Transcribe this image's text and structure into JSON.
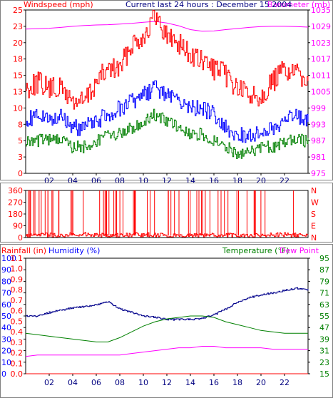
{
  "chart_data": [
    {
      "type": "line",
      "title": "Current last 24 hours : December 15 2004",
      "ylabel": "Windspeed (mph)",
      "y2label": "Barometer (mb)",
      "x_ticks": [
        "02",
        "04",
        "06",
        "08",
        "10",
        "12",
        "14",
        "16",
        "18",
        "20",
        "22"
      ],
      "y_ticks": [
        "0",
        "3",
        "5",
        "8",
        "10",
        "13",
        "15",
        "18",
        "20",
        "23",
        "25"
      ],
      "ylim": [
        0,
        25
      ],
      "y2_ticks": [
        "975",
        "981",
        "987",
        "993",
        "999",
        "1005",
        "1011",
        "1017",
        "1023",
        "1029",
        "1035"
      ],
      "y2lim": [
        975,
        1035
      ],
      "colors": {
        "gust": "#ff0000",
        "avg": "#0000ff",
        "min": "#008000",
        "baro": "#ff00ff"
      },
      "series": [
        {
          "key": "baro",
          "color": "#ff00ff",
          "axis": "y2",
          "x": [
            0,
            1,
            2,
            3,
            4,
            5,
            6,
            7,
            8,
            9,
            10,
            11,
            12,
            13,
            14,
            15,
            16,
            17,
            18,
            19,
            20,
            21,
            22,
            23,
            24
          ],
          "values": [
            1028.0,
            1028.1,
            1028.3,
            1028.6,
            1029.0,
            1029.3,
            1029.5,
            1029.6,
            1029.8,
            1030.1,
            1030.5,
            1030.8,
            1030.2,
            1029.2,
            1027.8,
            1027.2,
            1027.3,
            1027.8,
            1028.2,
            1028.6,
            1028.9,
            1029.0,
            1029.0,
            1028.9,
            1028.7
          ]
        },
        {
          "key": "gust",
          "color": "#ff0000",
          "axis": "y",
          "x": [
            0,
            1,
            2,
            3,
            4,
            5,
            6,
            7,
            8,
            9,
            10,
            11,
            12,
            13,
            14,
            15,
            16,
            17,
            18,
            19,
            20,
            21,
            22,
            23,
            24
          ],
          "values": [
            13,
            14,
            13,
            13,
            11,
            11,
            14,
            16,
            16,
            20,
            21,
            24,
            21,
            20,
            18,
            17,
            16,
            15,
            13,
            12,
            12,
            14,
            16,
            15,
            15
          ]
        },
        {
          "key": "avg",
          "color": "#0000ff",
          "axis": "y",
          "x": [
            0,
            1,
            2,
            3,
            4,
            5,
            6,
            7,
            8,
            9,
            10,
            11,
            12,
            13,
            14,
            15,
            16,
            17,
            18,
            19,
            20,
            21,
            22,
            23,
            24
          ],
          "values": [
            8,
            9,
            8,
            9,
            7,
            7,
            8,
            9,
            10,
            11,
            12,
            13,
            12,
            11,
            10,
            10,
            9,
            7,
            6,
            6,
            6,
            7,
            8,
            9,
            8
          ]
        },
        {
          "key": "min",
          "color": "#008000",
          "axis": "y",
          "x": [
            0,
            1,
            2,
            3,
            4,
            5,
            6,
            7,
            8,
            9,
            10,
            11,
            12,
            13,
            14,
            15,
            16,
            17,
            18,
            19,
            20,
            21,
            22,
            23,
            24
          ],
          "values": [
            5,
            5,
            5,
            5,
            4,
            4,
            5,
            6,
            6,
            7,
            8,
            9,
            8,
            7,
            6,
            6,
            5,
            4,
            3,
            3,
            4,
            4,
            5,
            5,
            5
          ]
        }
      ]
    },
    {
      "type": "line",
      "y_ticks": [
        "0",
        "90",
        "180",
        "270",
        "360"
      ],
      "ylim": [
        0,
        360
      ],
      "y2_ticks": [
        "N",
        "W",
        "S",
        "E",
        "N"
      ],
      "colors": {
        "dir": "#ff0000"
      },
      "series": [
        {
          "key": "dir",
          "color": "#ff0000",
          "x": [
            0,
            1,
            2,
            3,
            4,
            5,
            6,
            7,
            8,
            9,
            10,
            11,
            12,
            13,
            14,
            15,
            16,
            17,
            18,
            19,
            20,
            21,
            22,
            23,
            24
          ],
          "values": [
            15,
            18,
            20,
            15,
            22,
            25,
            20,
            18,
            15,
            20,
            22,
            18,
            15,
            12,
            14,
            16,
            18,
            20,
            15,
            12,
            18,
            20,
            22,
            18,
            15
          ]
        }
      ]
    },
    {
      "type": "line",
      "labels": [
        "Rainfall (in)",
        "Humidity (%)",
        "Temperature (°F)",
        "Dew Point"
      ],
      "x_ticks": [
        "02",
        "04",
        "06",
        "08",
        "10",
        "12",
        "14",
        "16",
        "18",
        "20",
        "22"
      ],
      "y_ticks": [
        "0",
        "10",
        "20",
        "30",
        "40",
        "50",
        "60",
        "70",
        "80",
        "90",
        "100"
      ],
      "ylim": [
        0,
        100
      ],
      "rain_ticks": [
        "0.0",
        "0.1",
        "0.2",
        "0.3",
        "0.4",
        "0.5",
        "0.6",
        "0.7",
        "0.8",
        "0.9",
        "1.0",
        "1.1"
      ],
      "y2_ticks": [
        "15",
        "23",
        "31",
        "39",
        "47",
        "55",
        "63",
        "71",
        "79",
        "87",
        "95"
      ],
      "y2lim": [
        15,
        95
      ],
      "colors": {
        "humidity": "#00008b",
        "temperature": "#008000",
        "dewpoint": "#ff00ff",
        "rain": "#ff0000"
      },
      "series": [
        {
          "key": "humidity",
          "name": "Humidity (%)",
          "color": "#00008b",
          "axis": "y",
          "x": [
            0,
            1,
            2,
            3,
            4,
            5,
            6,
            7,
            8,
            9,
            10,
            11,
            12,
            13,
            14,
            15,
            16,
            17,
            18,
            19,
            20,
            21,
            22,
            23,
            24
          ],
          "values": [
            50,
            50,
            53,
            55,
            57,
            58,
            60,
            62,
            56,
            53,
            50,
            49,
            47,
            47,
            47,
            48,
            51,
            56,
            62,
            66,
            68,
            70,
            72,
            74,
            73
          ]
        },
        {
          "key": "temperature",
          "name": "Temperature (°F)",
          "color": "#008000",
          "axis": "y2",
          "x": [
            0,
            1,
            2,
            3,
            4,
            5,
            6,
            7,
            8,
            9,
            10,
            11,
            12,
            13,
            14,
            15,
            16,
            17,
            18,
            19,
            20,
            21,
            22,
            23,
            24
          ],
          "values": [
            43,
            42,
            41,
            40,
            39,
            38,
            37,
            37,
            40,
            44,
            48,
            51,
            53,
            54,
            55,
            55,
            54,
            51,
            49,
            47,
            45,
            44,
            43,
            43,
            43
          ]
        },
        {
          "key": "dewpoint",
          "name": "Dew Point",
          "color": "#ff00ff",
          "axis": "y2",
          "x": [
            0,
            1,
            2,
            3,
            4,
            5,
            6,
            7,
            8,
            9,
            10,
            11,
            12,
            13,
            14,
            15,
            16,
            17,
            18,
            19,
            20,
            21,
            22,
            23,
            24
          ],
          "values": [
            27,
            28,
            28,
            28,
            28,
            28,
            28,
            28,
            28,
            29,
            30,
            31,
            32,
            33,
            33,
            34,
            34,
            33,
            33,
            33,
            33,
            32,
            32,
            32,
            32
          ]
        },
        {
          "key": "rain",
          "name": "Rainfall (in)",
          "color": "#ff0000",
          "axis": "rain",
          "x": [
            0,
            24
          ],
          "values": [
            0,
            0
          ]
        }
      ]
    }
  ]
}
